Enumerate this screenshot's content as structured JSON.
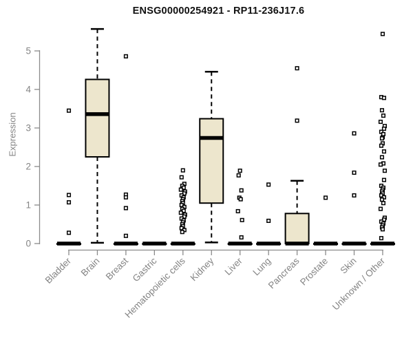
{
  "chart_data": {
    "type": "boxplot",
    "title": "ENSG00000254921 - RP11-236J17.6",
    "ylabel": "Expression",
    "xlabel": "",
    "ylim": [
      0,
      5.6
    ],
    "yticks": [
      0,
      1,
      2,
      3,
      4,
      5
    ],
    "grid": false,
    "legend": "none",
    "categories": [
      "Bladder",
      "Brain",
      "Breast",
      "Gastric",
      "Hematopoietic cells",
      "Kidney",
      "Liver",
      "Lung",
      "Pancreas",
      "Prostate",
      "Skin",
      "Unknown / Other"
    ],
    "boxes": [
      {
        "category": "Bladder",
        "q1": 0,
        "median": 0,
        "q3": 0,
        "whisker_low": 0,
        "whisker_high": 0,
        "outliers": [
          3.45,
          1.26,
          1.07,
          0.28
        ]
      },
      {
        "category": "Brain",
        "q1": 2.25,
        "median": 3.36,
        "q3": 4.26,
        "whisker_low": 0.02,
        "whisker_high": 5.57,
        "outliers": []
      },
      {
        "category": "Breast",
        "q1": 0,
        "median": 0,
        "q3": 0,
        "whisker_low": 0,
        "whisker_high": 0,
        "outliers": [
          4.86,
          1.27,
          1.2,
          0.92,
          0.2
        ]
      },
      {
        "category": "Gastric",
        "q1": 0,
        "median": 0,
        "q3": 0,
        "whisker_low": 0,
        "whisker_high": 0,
        "outliers": []
      },
      {
        "category": "Hematopoietic cells",
        "q1": 0,
        "median": 0,
        "q3": 0,
        "whisker_low": 0,
        "whisker_high": 0,
        "outliers": [
          1.9,
          1.72,
          1.55,
          1.5,
          1.45,
          1.4,
          1.35,
          1.3,
          1.25,
          1.2,
          1.15,
          1.1,
          1.05,
          1.0,
          0.95,
          0.9,
          0.85,
          0.8,
          0.75,
          0.7,
          0.65,
          0.6,
          0.55,
          0.5,
          0.45,
          0.4,
          0.35,
          0.3
        ]
      },
      {
        "category": "Kidney",
        "q1": 1.05,
        "median": 2.74,
        "q3": 3.24,
        "whisker_low": 0.03,
        "whisker_high": 4.46,
        "outliers": []
      },
      {
        "category": "Liver",
        "q1": 0,
        "median": 0,
        "q3": 0,
        "whisker_low": 0,
        "whisker_high": 0,
        "outliers": [
          1.89,
          1.77,
          1.38,
          1.19,
          1.15,
          0.84,
          0.61,
          0.16
        ]
      },
      {
        "category": "Lung",
        "q1": 0,
        "median": 0,
        "q3": 0,
        "whisker_low": 0,
        "whisker_high": 0,
        "outliers": [
          1.53,
          0.59
        ]
      },
      {
        "category": "Pancreas",
        "q1": 0,
        "median": 0,
        "q3": 0.78,
        "whisker_low": 0,
        "whisker_high": 1.63,
        "outliers": [
          4.55,
          3.19
        ]
      },
      {
        "category": "Prostate",
        "q1": 0,
        "median": 0,
        "q3": 0,
        "whisker_low": 0,
        "whisker_high": 0,
        "outliers": [
          1.19
        ]
      },
      {
        "category": "Skin",
        "q1": 0,
        "median": 0,
        "q3": 0,
        "whisker_low": 0,
        "whisker_high": 0,
        "outliers": [
          2.86,
          1.84,
          1.25
        ]
      },
      {
        "category": "Unknown / Other",
        "q1": 0,
        "median": 0,
        "q3": 0,
        "whisker_low": 0,
        "whisker_high": 0,
        "outliers": [
          5.44,
          3.8,
          3.78,
          3.46,
          3.32,
          3.16,
          3.05,
          2.98,
          2.9,
          2.84,
          2.76,
          2.73,
          2.6,
          2.54,
          2.39,
          2.24,
          2.08,
          2.05,
          1.89,
          1.65,
          1.5,
          1.45,
          1.4,
          1.35,
          1.3,
          1.25,
          1.2,
          1.14,
          1.05,
          0.9,
          0.67,
          0.62,
          0.57,
          0.52,
          0.47,
          0.42,
          0.37,
          0.14
        ]
      }
    ],
    "colors": {
      "box_fill": "#EDE6CD",
      "box_border": "#000000",
      "median": "#000000",
      "whisker": "#000000",
      "outlier_stroke": "#000000",
      "outlier_fill": "#ffffff",
      "axis": "#8a8a8a",
      "tick_label": "#848484",
      "title": "#111111",
      "background": "#ffffff"
    }
  }
}
